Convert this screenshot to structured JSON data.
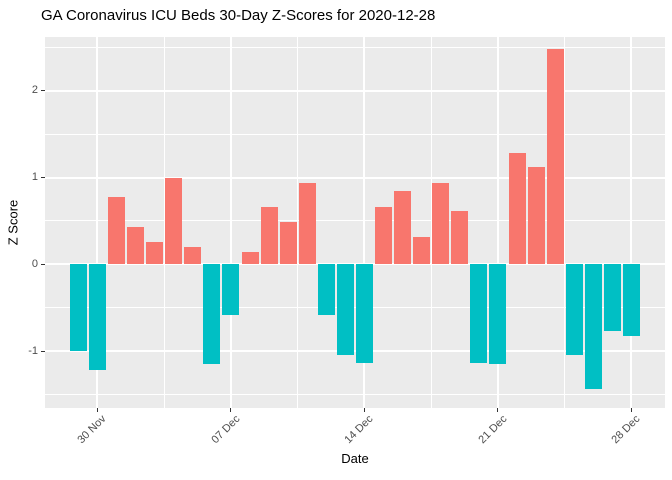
{
  "title": "GA Coronavirus ICU Beds 30-Day Z-Scores for 2020-12-28",
  "chart_data": {
    "type": "bar",
    "title": "GA Coronavirus ICU Beds 30-Day Z-Scores for 2020-12-28",
    "xlabel": "Date",
    "ylabel": "Z Score",
    "x": [
      "2020-11-29",
      "2020-11-30",
      "2020-12-01",
      "2020-12-02",
      "2020-12-03",
      "2020-12-04",
      "2020-12-05",
      "2020-12-06",
      "2020-12-07",
      "2020-12-08",
      "2020-12-09",
      "2020-12-10",
      "2020-12-11",
      "2020-12-12",
      "2020-12-13",
      "2020-12-14",
      "2020-12-15",
      "2020-12-16",
      "2020-12-17",
      "2020-12-18",
      "2020-12-19",
      "2020-12-20",
      "2020-12-21",
      "2020-12-22",
      "2020-12-23",
      "2020-12-24",
      "2020-12-25",
      "2020-12-26",
      "2020-12-27",
      "2020-12-28"
    ],
    "values": [
      -1.0,
      -1.22,
      0.77,
      0.43,
      0.26,
      1.0,
      0.2,
      -1.15,
      -0.58,
      0.14,
      0.66,
      0.49,
      0.94,
      -0.58,
      -1.04,
      -1.14,
      0.66,
      0.84,
      0.32,
      0.94,
      0.61,
      -1.14,
      -1.15,
      1.28,
      1.12,
      2.48,
      -1.04,
      -1.44,
      -0.77,
      -0.83
    ],
    "x_tick_labels": [
      "30 Nov",
      "07 Dec",
      "14 Dec",
      "21 Dec",
      "28 Dec"
    ],
    "x_tick_indices": [
      1,
      8,
      15,
      22,
      29
    ],
    "y_ticks": [
      2,
      1,
      0,
      -1
    ],
    "ylim": [
      -1.65,
      2.62
    ],
    "grid": true,
    "legend_position": "none",
    "colors": {
      "positive_bar": "#F8766D",
      "negative_bar": "#00BFC4",
      "panel_background": "#EBEBEB",
      "gridline": "#FFFFFF",
      "axis_text": "#4D4D4D",
      "tick_mark": "#333333",
      "title_text": "#000000"
    }
  }
}
